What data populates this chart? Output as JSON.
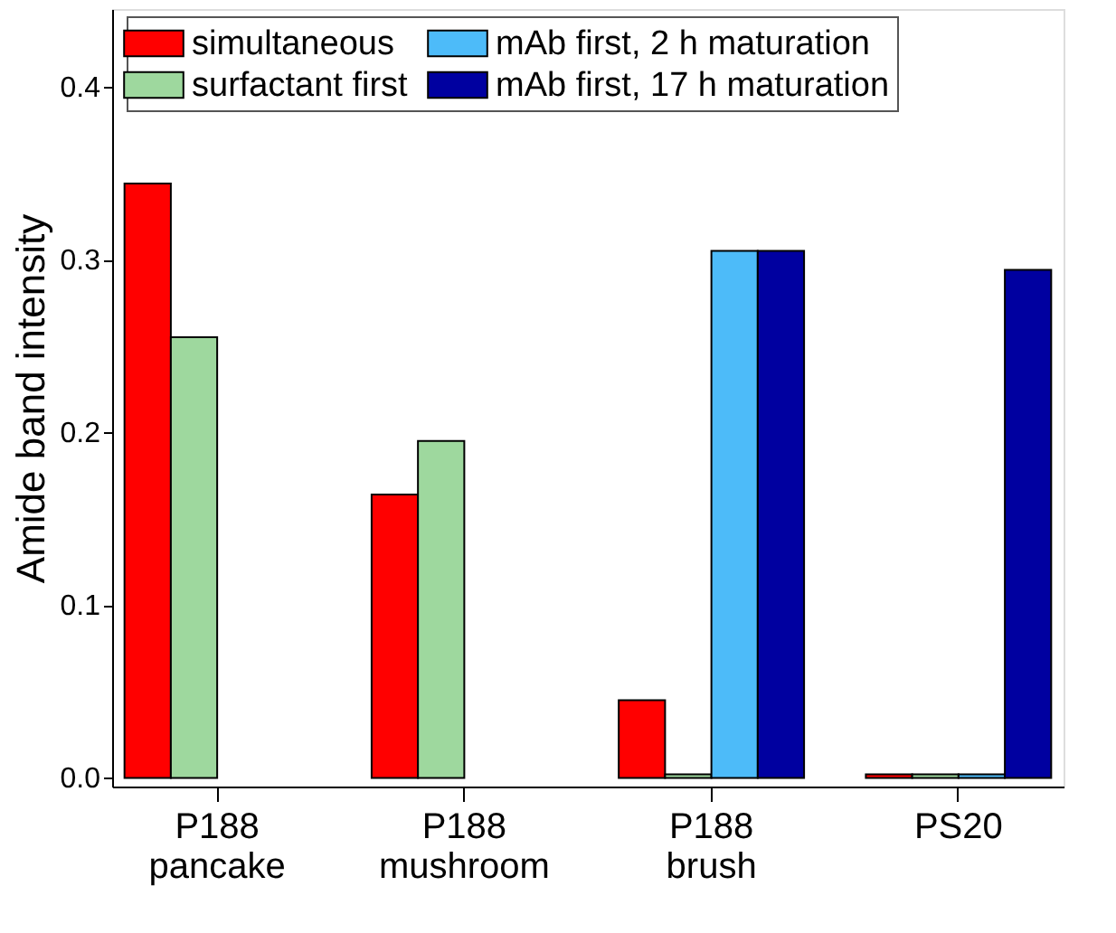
{
  "chart_data": {
    "type": "bar",
    "ylabel": "Amide band intensity",
    "categories": [
      "P188 pancake",
      "P188 mushroom",
      "P188 brush",
      "PS20"
    ],
    "series": [
      {
        "name": "simultaneous",
        "color": "#ff0000",
        "values": [
          0.344,
          0.164,
          0.045,
          0.002
        ]
      },
      {
        "name": "surfactant first",
        "color": "#9ed89e",
        "values": [
          0.255,
          0.195,
          0.002,
          0.002
        ]
      },
      {
        "name": "mAb first,   2 h maturation",
        "color": "#4dbbf9",
        "values": [
          null,
          null,
          0.305,
          0.002
        ]
      },
      {
        "name": "mAb first, 17 h maturation",
        "color": "#0000a0",
        "values": [
          null,
          null,
          0.305,
          0.294
        ]
      }
    ],
    "ylim": [
      -0.005,
      0.445
    ],
    "yticks": [
      {
        "value": 0,
        "label": "0.0"
      },
      {
        "value": 0.1,
        "label": "0.1"
      },
      {
        "value": 0.2,
        "label": "0.2"
      },
      {
        "value": 0.3,
        "label": "0.3"
      },
      {
        "value": 0.4,
        "label": "0.4"
      }
    ],
    "legend": "top",
    "grid": false
  }
}
